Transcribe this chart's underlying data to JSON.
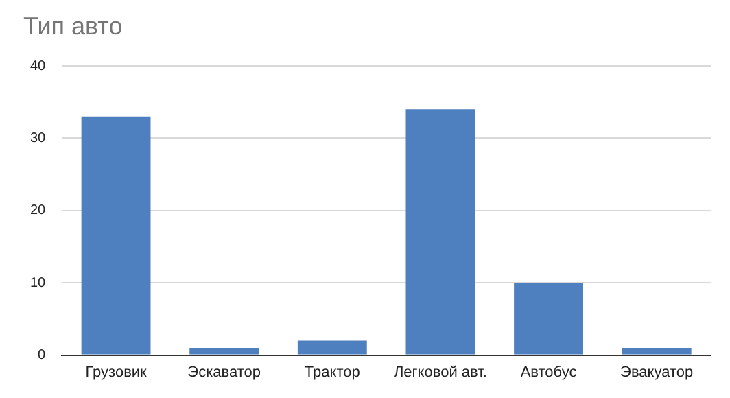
{
  "chart_data": {
    "type": "bar",
    "title": "Тип авто",
    "categories": [
      "Грузовик",
      "Эскаватор",
      "Трактор",
      "Легковой авт.",
      "Автобус",
      "Эвакуатор"
    ],
    "values": [
      33,
      1,
      2,
      34,
      10,
      1
    ],
    "color": "#4e7fbe",
    "ylim": [
      0,
      40
    ],
    "yticks": [
      0,
      10,
      20,
      30,
      40
    ],
    "grid": "y",
    "legend": false
  }
}
